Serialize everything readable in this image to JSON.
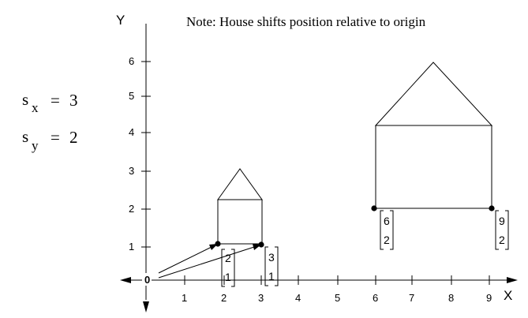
{
  "note": "Note: House shifts position relative to origin",
  "axes": {
    "x_label": "X",
    "y_label": "Y",
    "origin_label": "0",
    "x_ticks": [
      "1",
      "2",
      "3",
      "4",
      "5",
      "6",
      "7",
      "8",
      "9"
    ],
    "y_ticks": [
      "1",
      "2",
      "3",
      "4",
      "5",
      "6"
    ]
  },
  "scale_factors": {
    "sx_base": "s",
    "sx_sub": "x",
    "sx_eq": "=",
    "sx_value": "3",
    "sy_base": "s",
    "sy_sub": "y",
    "sy_eq": "=",
    "sy_value": "2"
  },
  "original_house": {
    "left_point": {
      "x": "2",
      "y": "1"
    },
    "right_point": {
      "x": "3",
      "y": "1"
    }
  },
  "scaled_house": {
    "left_point": {
      "x": "6",
      "y": "2"
    },
    "right_point": {
      "x": "9",
      "y": "2"
    }
  },
  "colors": {
    "ink": "#000000",
    "background": "#ffffff"
  }
}
